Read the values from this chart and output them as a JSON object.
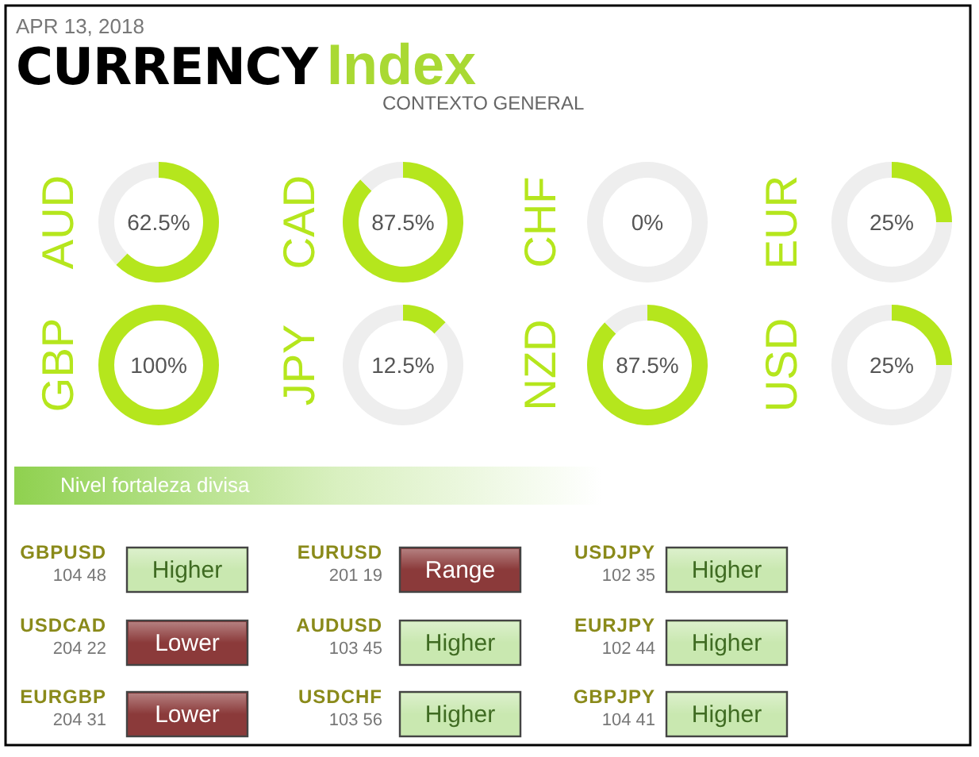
{
  "chart_data": [
    {
      "type": "other",
      "title": "CURRENCY Index",
      "subtitle": "CONTEXTO GENERAL",
      "annotations": [
        "APR 13, 2018"
      ]
    },
    {
      "type": "donut",
      "title": "AUD",
      "categories": [
        null,
        null
      ],
      "values": [
        62.5,
        37.5
      ],
      "colors": [
        "#b5e61d",
        "#eeeeee"
      ],
      "annotations": [
        "62.5%"
      ]
    },
    {
      "type": "donut",
      "title": "CAD",
      "categories": [
        null,
        null
      ],
      "values": [
        87.5,
        12.5
      ],
      "colors": [
        "#b5e61d",
        "#eeeeee"
      ],
      "annotations": [
        "87.5%"
      ]
    },
    {
      "type": "donut",
      "title": "CHF",
      "categories": [
        null,
        null
      ],
      "values": [
        0,
        100
      ],
      "colors": [
        "#b5e61d",
        "#eeeeee"
      ],
      "annotations": [
        "0%"
      ]
    },
    {
      "type": "donut",
      "title": "EUR",
      "categories": [
        null,
        null
      ],
      "values": [
        25,
        75
      ],
      "colors": [
        "#b5e61d",
        "#eeeeee"
      ],
      "annotations": [
        "25%"
      ]
    },
    {
      "type": "donut",
      "title": "GBP",
      "categories": [
        null,
        null
      ],
      "values": [
        100,
        0
      ],
      "colors": [
        "#b5e61d",
        "#eeeeee"
      ],
      "annotations": [
        "100%"
      ]
    },
    {
      "type": "donut",
      "title": "JPY",
      "categories": [
        null,
        null
      ],
      "values": [
        12.5,
        87.5
      ],
      "colors": [
        "#b5e61d",
        "#eeeeee"
      ],
      "annotations": [
        "12.5%"
      ]
    },
    {
      "type": "donut",
      "title": "NZD",
      "categories": [
        null,
        null
      ],
      "values": [
        87.5,
        12.5
      ],
      "colors": [
        "#b5e61d",
        "#eeeeee"
      ],
      "annotations": [
        "87.5%"
      ]
    },
    {
      "type": "donut",
      "title": "USD",
      "categories": [
        null,
        null
      ],
      "values": [
        25,
        75
      ],
      "colors": [
        "#b5e61d",
        "#eeeeee"
      ],
      "annotations": [
        "25%"
      ]
    },
    {
      "type": "other",
      "title": "Nivel fortaleza divisa",
      "annotations": [
        "GBPUSD",
        "104 48",
        "Higher",
        "EURUSD",
        "201 19",
        "Range",
        "USDJPY",
        "102 35",
        "Higher",
        "USDCAD",
        "204 22",
        "Lower",
        "AUDUSD",
        "103 45",
        "Higher",
        "EURJPY",
        "102 44",
        "Higher",
        "EURGBP",
        "204 31",
        "Lower",
        "USDCHF",
        "103 56",
        "Higher",
        "GBPJPY",
        "104 41",
        "Higher"
      ],
      "colors": [
        "#c9e8b0",
        "#8b3a3a",
        "#c9e8b0",
        "#8b3a3a",
        "#c9e8b0",
        "#c9e8b0",
        "#8b3a3a",
        "#c9e8b0",
        "#c9e8b0"
      ]
    }
  ]
}
